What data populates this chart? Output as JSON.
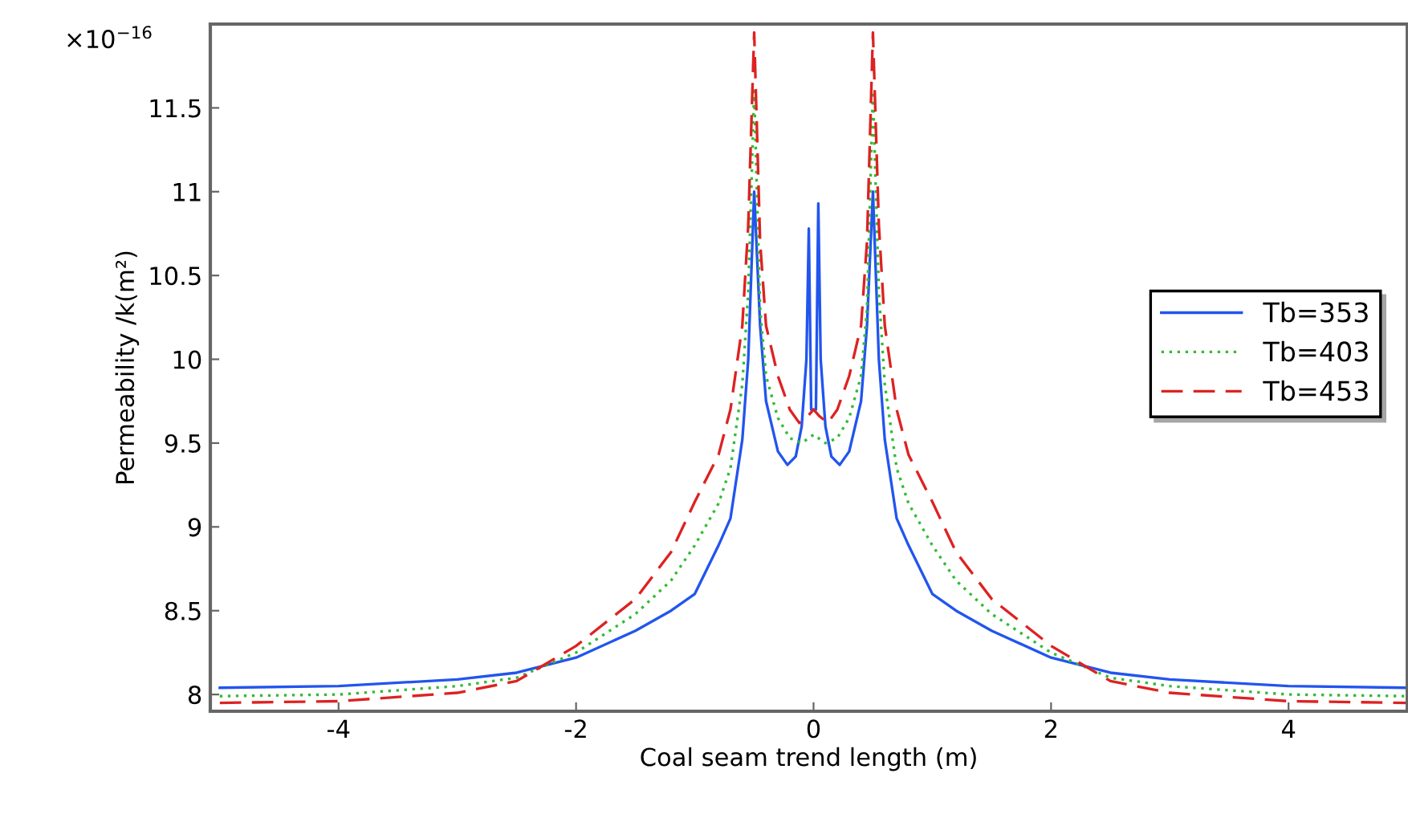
{
  "chart_data": {
    "type": "line",
    "xlabel": "Coal seam trend length (m)",
    "ylabel": "Permeability /k(m²)",
    "annotations": [
      "×10$^{−16}$"
    ],
    "xlim": [
      -5.08,
      5
    ],
    "xticks": [
      -4,
      -2,
      0,
      2,
      4
    ],
    "ylim": [
      7.9,
      12.0
    ],
    "yticks": [
      8,
      8.5,
      9,
      9.5,
      10,
      10.5,
      11,
      11.5
    ],
    "grid": false,
    "legend": "right",
    "marker": "none",
    "series": [
      {
        "name": "Tb=353",
        "color": "#2255ee",
        "line_style": "solid",
        "x": [
          -5,
          -4,
          -3,
          -2.5,
          -2,
          -1.5,
          -1.2,
          -1,
          -0.8,
          -0.7,
          -0.6,
          -0.55,
          -0.5,
          -0.45,
          -0.4,
          -0.3,
          -0.22,
          -0.15,
          -0.1,
          -0.06,
          -0.04,
          -0.02,
          0.02,
          0.04,
          0.06,
          0.1,
          0.15,
          0.22,
          0.3,
          0.4,
          0.45,
          0.5,
          0.55,
          0.6,
          0.7,
          0.8,
          1,
          1.2,
          1.5,
          2,
          2.5,
          3,
          4,
          5
        ],
        "values": [
          8.04,
          8.05,
          8.09,
          8.13,
          8.22,
          8.38,
          8.5,
          8.6,
          8.89,
          9.05,
          9.52,
          10.0,
          11.0,
          10.2,
          9.75,
          9.45,
          9.37,
          9.42,
          9.6,
          10.0,
          10.78,
          9.7,
          9.7,
          10.93,
          10.0,
          9.6,
          9.42,
          9.37,
          9.45,
          9.75,
          10.2,
          11.0,
          10.0,
          9.52,
          9.05,
          8.89,
          8.6,
          8.5,
          8.38,
          8.22,
          8.13,
          8.09,
          8.05,
          8.04
        ]
      },
      {
        "name": "Tb=403",
        "color": "#33bb33",
        "line_style": "dotted",
        "x": [
          -5,
          -4,
          -3,
          -2.5,
          -2,
          -1.5,
          -1.2,
          -1,
          -0.8,
          -0.7,
          -0.6,
          -0.55,
          -0.5,
          -0.45,
          -0.4,
          -0.3,
          -0.2,
          -0.1,
          0,
          0.1,
          0.2,
          0.3,
          0.4,
          0.45,
          0.5,
          0.55,
          0.6,
          0.7,
          0.8,
          1,
          1.2,
          1.5,
          2,
          2.5,
          3,
          4,
          5
        ],
        "values": [
          7.99,
          8.0,
          8.05,
          8.1,
          8.25,
          8.48,
          8.68,
          8.89,
          9.14,
          9.35,
          9.85,
          10.4,
          11.6,
          10.3,
          9.9,
          9.65,
          9.53,
          9.5,
          9.55,
          9.5,
          9.53,
          9.65,
          9.9,
          10.3,
          11.6,
          10.4,
          9.85,
          9.35,
          9.14,
          8.89,
          8.68,
          8.48,
          8.25,
          8.1,
          8.05,
          8.0,
          7.99
        ]
      },
      {
        "name": "Tb=453",
        "color": "#dd2222",
        "line_style": "dashed",
        "x": [
          -5,
          -4,
          -3,
          -2.5,
          -2,
          -1.5,
          -1.2,
          -1,
          -0.8,
          -0.7,
          -0.6,
          -0.55,
          -0.5,
          -0.45,
          -0.4,
          -0.3,
          -0.2,
          -0.12,
          -0.05,
          0,
          0.05,
          0.12,
          0.2,
          0.3,
          0.4,
          0.45,
          0.5,
          0.55,
          0.6,
          0.7,
          0.8,
          1,
          1.2,
          1.5,
          2,
          2.5,
          3,
          4,
          5
        ],
        "values": [
          7.95,
          7.96,
          8.01,
          8.08,
          8.29,
          8.57,
          8.85,
          9.15,
          9.43,
          9.7,
          10.2,
          10.8,
          11.95,
          10.7,
          10.2,
          9.9,
          9.7,
          9.62,
          9.66,
          9.7,
          9.66,
          9.62,
          9.7,
          9.9,
          10.2,
          10.7,
          11.95,
          10.8,
          10.2,
          9.7,
          9.43,
          9.15,
          8.85,
          8.57,
          8.29,
          8.08,
          8.01,
          7.96,
          7.95
        ]
      }
    ]
  }
}
